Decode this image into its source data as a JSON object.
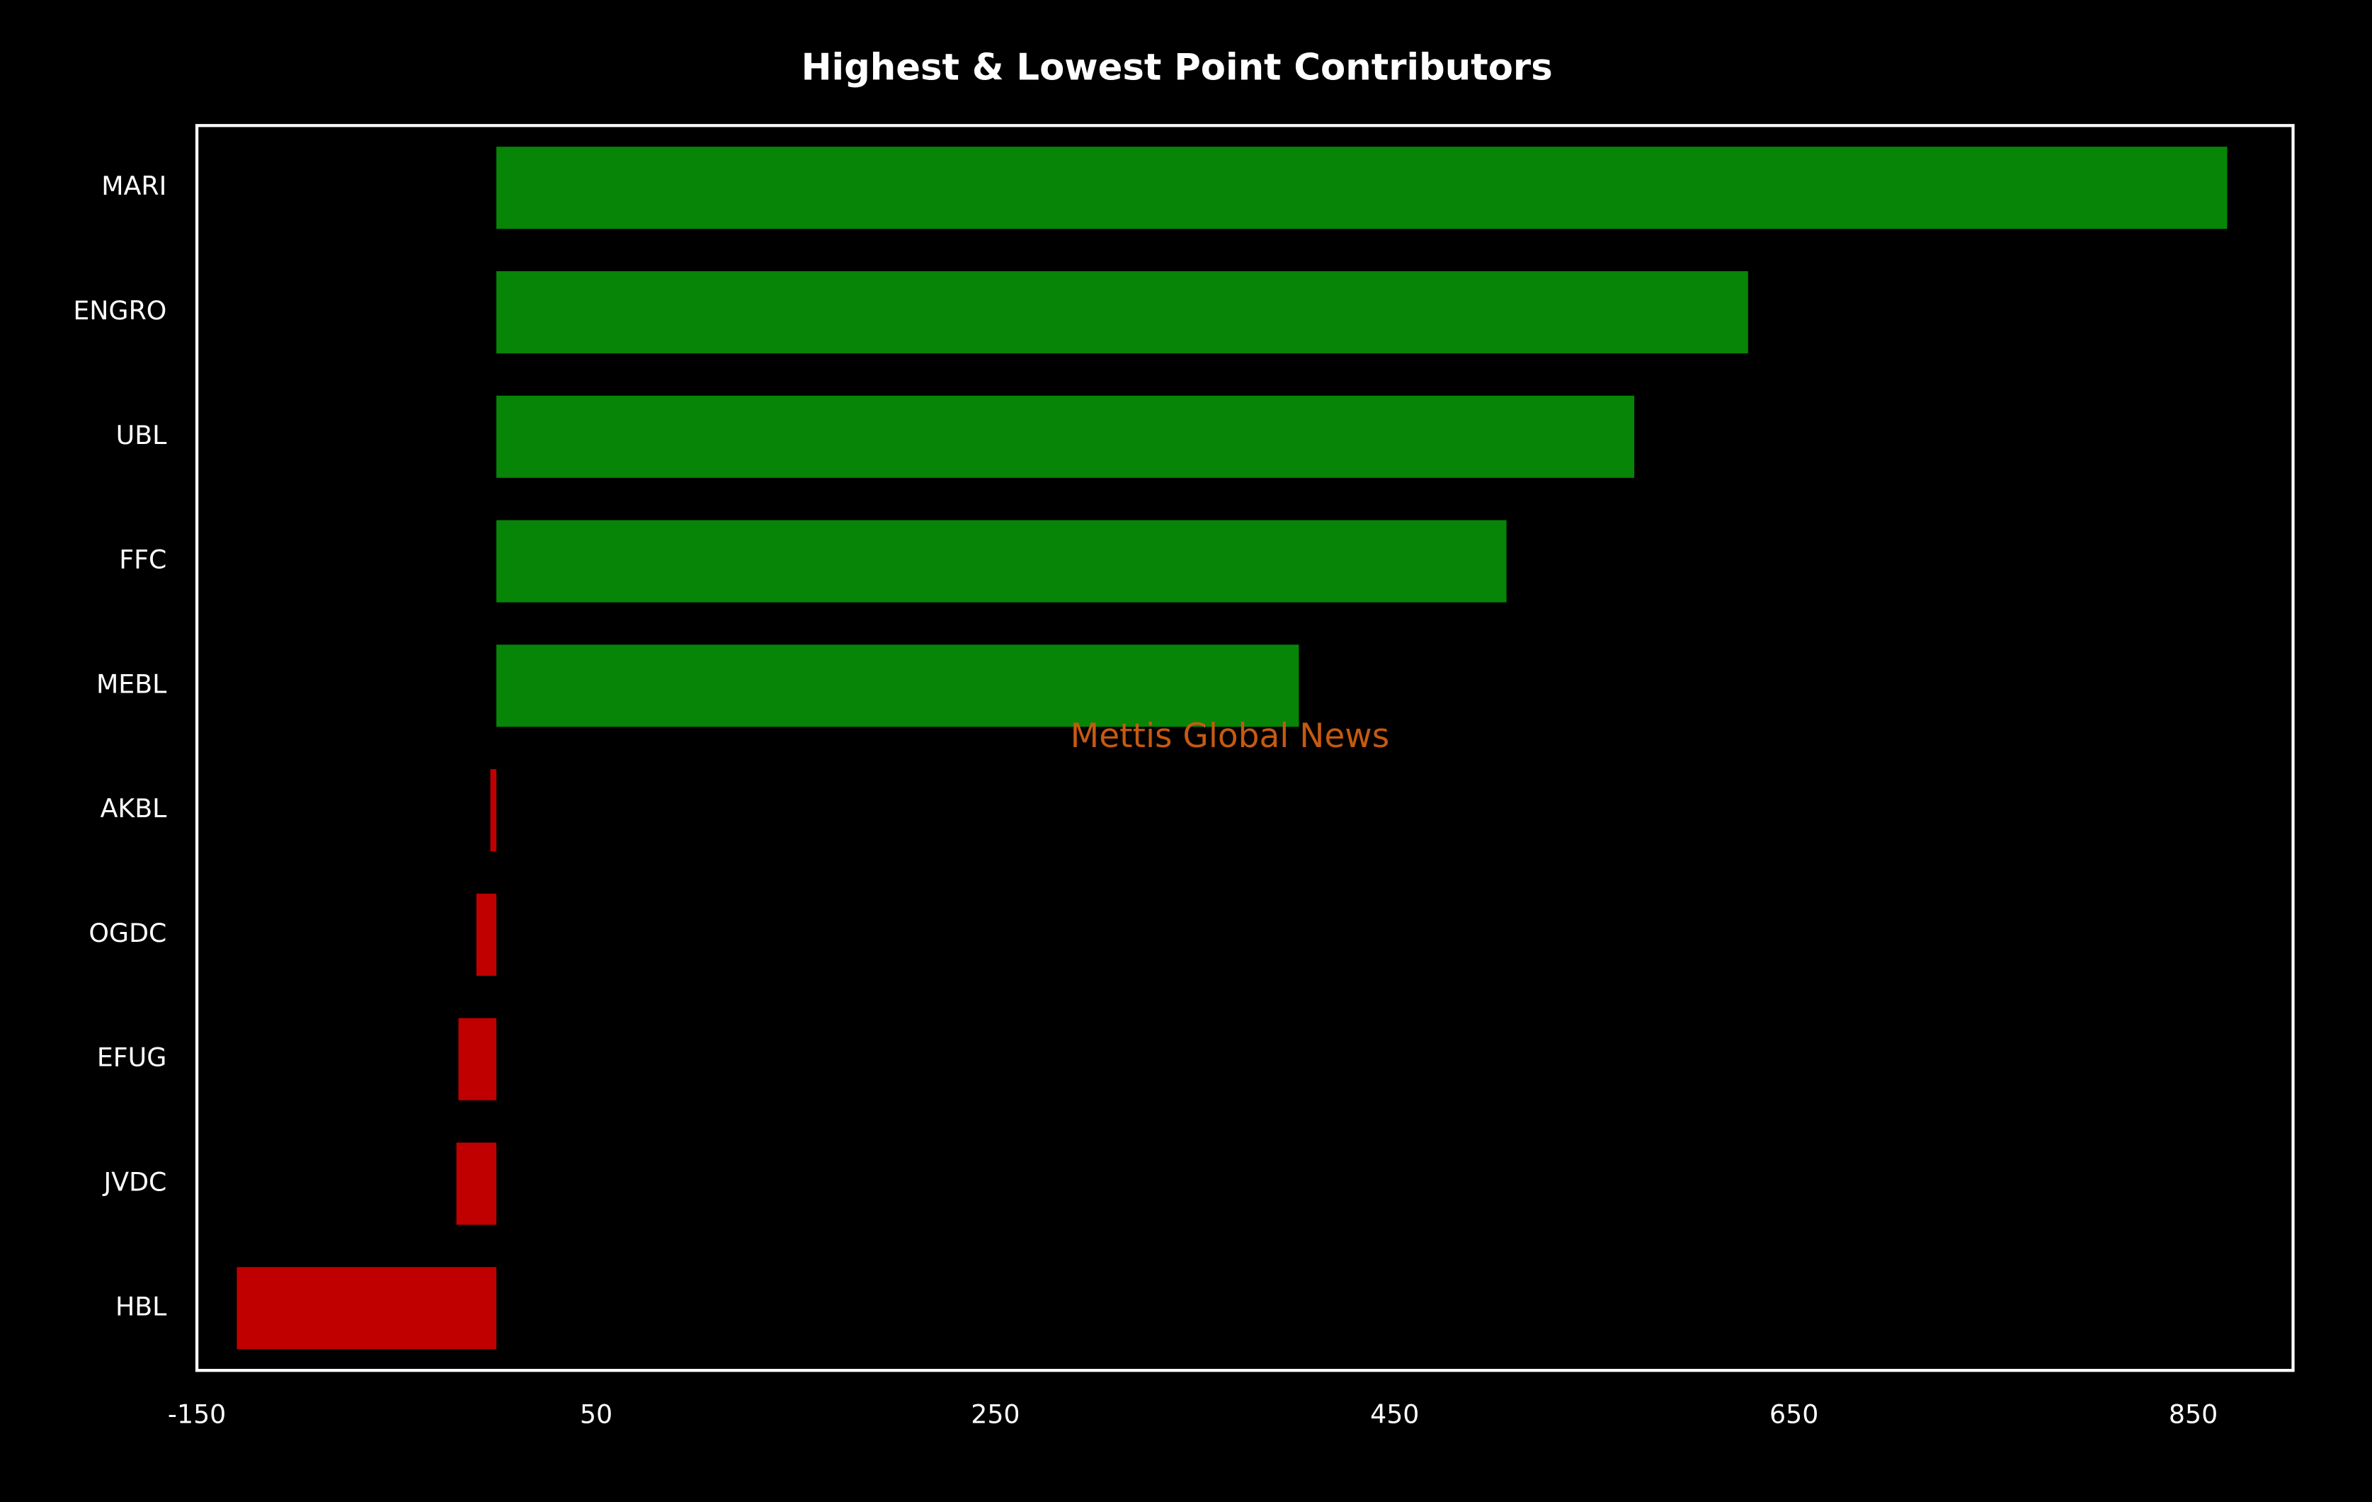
{
  "chart_data": {
    "type": "bar",
    "orientation": "horizontal",
    "title": "Highest & Lowest Point Contributors",
    "annotation": "Mettis Global News",
    "categories": [
      "MARI",
      "ENGRO",
      "UBL",
      "FFC",
      "MEBL",
      "AKBL",
      "OGDC",
      "EFUG",
      "JVDC",
      "HBL"
    ],
    "values": [
      867,
      627,
      570,
      506,
      402,
      -3,
      -10,
      -19,
      -20,
      -130
    ],
    "positive_color": "#078507",
    "negative_color": "#c00000",
    "xlim": [
      -150,
      900
    ],
    "xticks": [
      -150,
      50,
      250,
      450,
      650,
      850
    ],
    "grid": false
  }
}
